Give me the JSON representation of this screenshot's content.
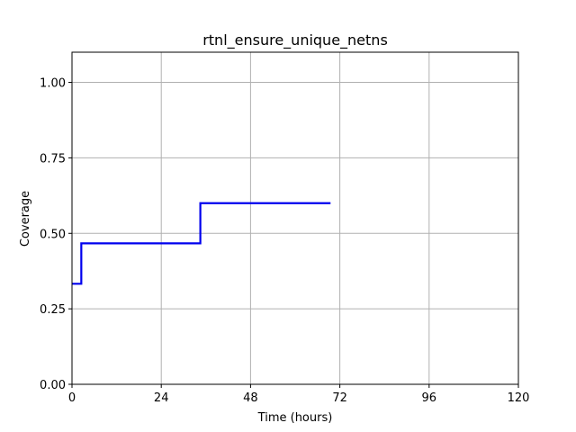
{
  "chart_data": {
    "type": "line",
    "title": "rtnl_ensure_unique_netns",
    "xlabel": "Time (hours)",
    "ylabel": "Coverage",
    "xlim": [
      0,
      120
    ],
    "ylim": [
      0,
      1.1
    ],
    "grid": true,
    "x_ticks": [
      0,
      24,
      48,
      72,
      96,
      120
    ],
    "x_tick_labels": [
      "0",
      "24",
      "48",
      "72",
      "96",
      "120"
    ],
    "y_ticks": [
      0,
      0.25,
      0.5,
      0.75,
      1.0
    ],
    "y_tick_labels": [
      "0.00",
      "0.25",
      "0.50",
      "0.75",
      "1.00"
    ],
    "series": [
      {
        "name": "coverage",
        "color": "#0000ee",
        "step": "post",
        "x": [
          0,
          2.5,
          34.5,
          69.5
        ],
        "values": [
          0.333,
          0.467,
          0.6,
          0.6
        ]
      }
    ]
  }
}
